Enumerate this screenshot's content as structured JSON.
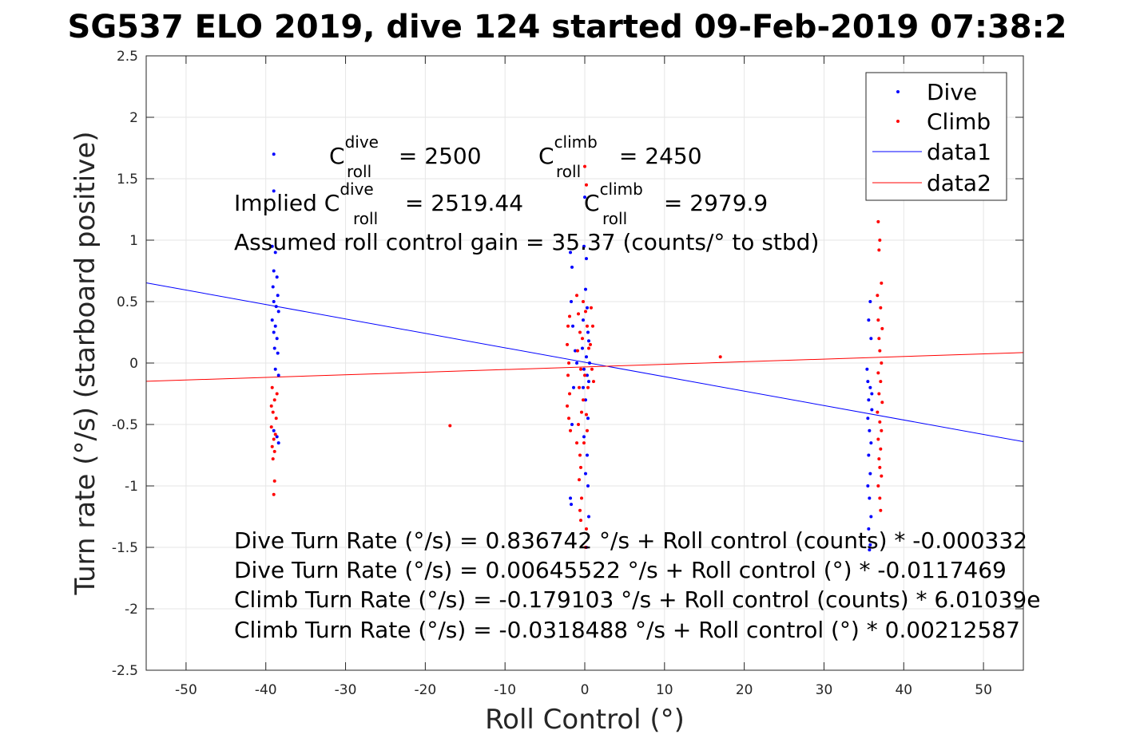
{
  "title": "SG537 ELO 2019, dive 124 started 09-Feb-2019 07:38:2",
  "chart_data": {
    "type": "scatter",
    "title": "SG537 ELO 2019, dive 124 started 09-Feb-2019 07:38:2",
    "xlabel": "Roll Control (°)",
    "ylabel": "Turn rate (°/s) (starboard positive)",
    "xlim": [
      -55,
      55
    ],
    "ylim": [
      -2.5,
      2.5
    ],
    "xticks": [
      -50,
      -40,
      -30,
      -20,
      -10,
      0,
      10,
      20,
      30,
      40,
      50
    ],
    "yticks": [
      2.5,
      2,
      1.5,
      1,
      0.5,
      0,
      -0.5,
      -1,
      -1.5,
      -2,
      -2.5
    ],
    "grid": true,
    "legend_position": "top-right",
    "series": [
      {
        "name": "Dive",
        "kind": "points",
        "color": "#0000ff",
        "points": [
          [
            -39.0,
            1.7
          ],
          [
            -39.0,
            1.4
          ],
          [
            -39.2,
            0.95
          ],
          [
            -38.8,
            0.9
          ],
          [
            -39.0,
            0.75
          ],
          [
            -38.6,
            0.7
          ],
          [
            -39.1,
            0.62
          ],
          [
            -38.5,
            0.55
          ],
          [
            -39.0,
            0.5
          ],
          [
            -38.7,
            0.46
          ],
          [
            -38.4,
            0.42
          ],
          [
            -39.2,
            0.35
          ],
          [
            -38.8,
            0.3
          ],
          [
            -39.0,
            0.25
          ],
          [
            -38.6,
            0.2
          ],
          [
            -38.9,
            0.12
          ],
          [
            -38.5,
            0.08
          ],
          [
            -38.8,
            -0.05
          ],
          [
            -38.4,
            -0.1
          ],
          [
            -39.0,
            -0.55
          ],
          [
            -38.6,
            -0.6
          ],
          [
            -38.4,
            -0.65
          ],
          [
            -1.8,
            0.9
          ],
          [
            -1.6,
            0.78
          ],
          [
            -1.7,
            0.5
          ],
          [
            -1.5,
            0.3
          ],
          [
            -1.2,
            0.1
          ],
          [
            -1.0,
            0.0
          ],
          [
            -1.4,
            -0.2
          ],
          [
            -1.6,
            -0.5
          ],
          [
            -1.8,
            -1.1
          ],
          [
            -1.7,
            -1.15
          ],
          [
            0.0,
            1.35
          ],
          [
            -0.1,
            0.95
          ],
          [
            0.2,
            0.85
          ],
          [
            0.1,
            0.6
          ],
          [
            0.3,
            0.45
          ],
          [
            -0.2,
            0.35
          ],
          [
            0.4,
            0.25
          ],
          [
            0.5,
            0.18
          ],
          [
            -0.3,
            0.12
          ],
          [
            0.2,
            0.05
          ],
          [
            0.6,
            0.0
          ],
          [
            -0.1,
            -0.05
          ],
          [
            0.3,
            -0.1
          ],
          [
            0.5,
            -0.15
          ],
          [
            -0.2,
            -0.2
          ],
          [
            0.1,
            -0.3
          ],
          [
            0.4,
            -0.45
          ],
          [
            -0.1,
            -0.6
          ],
          [
            0.3,
            -0.75
          ],
          [
            0.1,
            -0.9
          ],
          [
            0.4,
            -1.0
          ],
          [
            0.5,
            -1.25
          ],
          [
            0.2,
            -1.5
          ],
          [
            35.8,
            0.5
          ],
          [
            35.6,
            0.35
          ],
          [
            35.9,
            0.2
          ],
          [
            35.5,
            -0.15
          ],
          [
            35.8,
            -0.2
          ],
          [
            35.6,
            -0.3
          ],
          [
            36.0,
            -0.38
          ],
          [
            35.5,
            -0.45
          ],
          [
            35.7,
            -0.55
          ],
          [
            35.9,
            -0.65
          ],
          [
            35.6,
            -0.75
          ],
          [
            35.8,
            -0.9
          ],
          [
            35.5,
            -1.0
          ],
          [
            35.7,
            -1.1
          ],
          [
            35.9,
            -1.25
          ],
          [
            35.6,
            -1.35
          ],
          [
            35.8,
            -1.48
          ],
          [
            35.7,
            -1.52
          ],
          [
            36.0,
            -0.25
          ],
          [
            35.4,
            -0.05
          ]
        ]
      },
      {
        "name": "Climb",
        "kind": "points",
        "color": "#ff0000",
        "points": [
          [
            -39.2,
            -0.2
          ],
          [
            -38.9,
            -0.3
          ],
          [
            -39.1,
            -0.4
          ],
          [
            -38.7,
            -0.45
          ],
          [
            -39.3,
            -0.52
          ],
          [
            -38.8,
            -0.58
          ],
          [
            -39.0,
            -0.62
          ],
          [
            -39.2,
            -0.68
          ],
          [
            -38.9,
            -0.72
          ],
          [
            -39.1,
            -0.78
          ],
          [
            -38.9,
            -0.96
          ],
          [
            -39.0,
            -1.07
          ],
          [
            -39.3,
            -0.35
          ],
          [
            -38.6,
            -0.25
          ],
          [
            -16.9,
            -0.51
          ],
          [
            17.0,
            0.05
          ],
          [
            -2.2,
            0.15
          ],
          [
            -2.0,
            0.0
          ],
          [
            -2.1,
            -0.1
          ],
          [
            -1.9,
            -0.25
          ],
          [
            -2.2,
            -0.35
          ],
          [
            -2.0,
            -0.45
          ],
          [
            -1.8,
            -0.55
          ],
          [
            -2.1,
            0.3
          ],
          [
            -1.9,
            0.38
          ],
          [
            -1.0,
            0.55
          ],
          [
            -0.8,
            0.4
          ],
          [
            -0.6,
            0.25
          ],
          [
            -0.9,
            0.1
          ],
          [
            -0.5,
            -0.05
          ],
          [
            -0.7,
            -0.2
          ],
          [
            -0.4,
            -0.4
          ],
          [
            -0.8,
            -0.5
          ],
          [
            -1.0,
            -0.65
          ],
          [
            -0.6,
            -0.75
          ],
          [
            -0.5,
            -0.85
          ],
          [
            -0.7,
            -0.95
          ],
          [
            -0.4,
            -1.1
          ],
          [
            -0.6,
            -1.2
          ],
          [
            -0.5,
            -1.28
          ],
          [
            0.0,
            1.6
          ],
          [
            0.2,
            1.45
          ],
          [
            -0.2,
            0.5
          ],
          [
            0.1,
            0.42
          ],
          [
            0.3,
            0.3
          ],
          [
            -0.3,
            0.2
          ],
          [
            0.5,
            0.12
          ],
          [
            0.0,
            -0.1
          ],
          [
            0.4,
            -0.2
          ],
          [
            -0.2,
            -0.3
          ],
          [
            0.2,
            -0.42
          ],
          [
            0.3,
            -0.55
          ],
          [
            -0.1,
            -0.65
          ],
          [
            0.2,
            -1.35
          ],
          [
            0.1,
            -1.5
          ],
          [
            0.8,
            0.45
          ],
          [
            1.0,
            0.3
          ],
          [
            0.7,
            0.15
          ],
          [
            0.9,
            -0.05
          ],
          [
            1.1,
            -0.15
          ],
          [
            36.8,
            1.15
          ],
          [
            37.0,
            1.0
          ],
          [
            36.9,
            0.92
          ],
          [
            37.2,
            0.65
          ],
          [
            36.7,
            0.55
          ],
          [
            37.1,
            0.45
          ],
          [
            36.8,
            0.35
          ],
          [
            37.3,
            0.28
          ],
          [
            36.9,
            0.2
          ],
          [
            37.0,
            0.1
          ],
          [
            37.2,
            0.0
          ],
          [
            36.8,
            -0.08
          ],
          [
            37.1,
            -0.15
          ],
          [
            36.9,
            -0.25
          ],
          [
            37.3,
            -0.32
          ],
          [
            36.7,
            -0.4
          ],
          [
            37.0,
            -0.48
          ],
          [
            37.2,
            -0.55
          ],
          [
            36.8,
            -0.62
          ],
          [
            37.1,
            -0.7
          ],
          [
            36.9,
            -0.78
          ],
          [
            37.0,
            -0.85
          ],
          [
            37.2,
            -0.92
          ],
          [
            36.8,
            -1.0
          ],
          [
            37.0,
            -1.1
          ],
          [
            37.1,
            -1.2
          ]
        ]
      },
      {
        "name": "data1",
        "kind": "line",
        "color": "#0000ff",
        "points": [
          [
            -55,
            0.6526
          ],
          [
            55,
            -0.6397
          ]
        ]
      },
      {
        "name": "data2",
        "kind": "line",
        "color": "#ff0000",
        "points": [
          [
            -55,
            -0.1488
          ],
          [
            55,
            0.0851
          ]
        ]
      }
    ],
    "legend": [
      {
        "label": "Dive",
        "marker": "point",
        "color": "#0000ff"
      },
      {
        "label": "Climb",
        "marker": "point",
        "color": "#ff0000"
      },
      {
        "label": "data1",
        "marker": "line",
        "color": "#0000ff"
      },
      {
        "label": "data2",
        "marker": "line",
        "color": "#ff0000"
      }
    ],
    "annotations": {
      "c_dive_label": "C",
      "c_dive_sup": "dive",
      "c_dive_sub": "roll",
      "c_dive_val": " = 2500",
      "c_climb_label": "C",
      "c_climb_sup": "climb",
      "c_climb_sub": "roll",
      "c_climb_val": " = 2450",
      "implied_prefix": "Implied C",
      "implied_dive_sup": "dive",
      "implied_dive_sub": "roll",
      "implied_dive_val": " = 2519.44",
      "implied_climb_label": "C",
      "implied_climb_sup": "climb",
      "implied_climb_sub": "roll",
      "implied_climb_val": " = 2979.9",
      "gain": "Assumed roll control gain = 35.37 (counts/° to stbd)",
      "eq1": "Dive Turn Rate (°/s) = 0.836742 °/s + Roll control (counts) * -0.000332",
      "eq2": "Dive Turn Rate (°/s) = 0.00645522 °/s + Roll control (°) * -0.0117469",
      "eq3": "Climb Turn Rate (°/s) = -0.179103 °/s + Roll control (counts) * 6.01039e",
      "eq4": "Climb Turn Rate (°/s) = -0.0318488 °/s + Roll control (°) * 0.00212587"
    }
  }
}
